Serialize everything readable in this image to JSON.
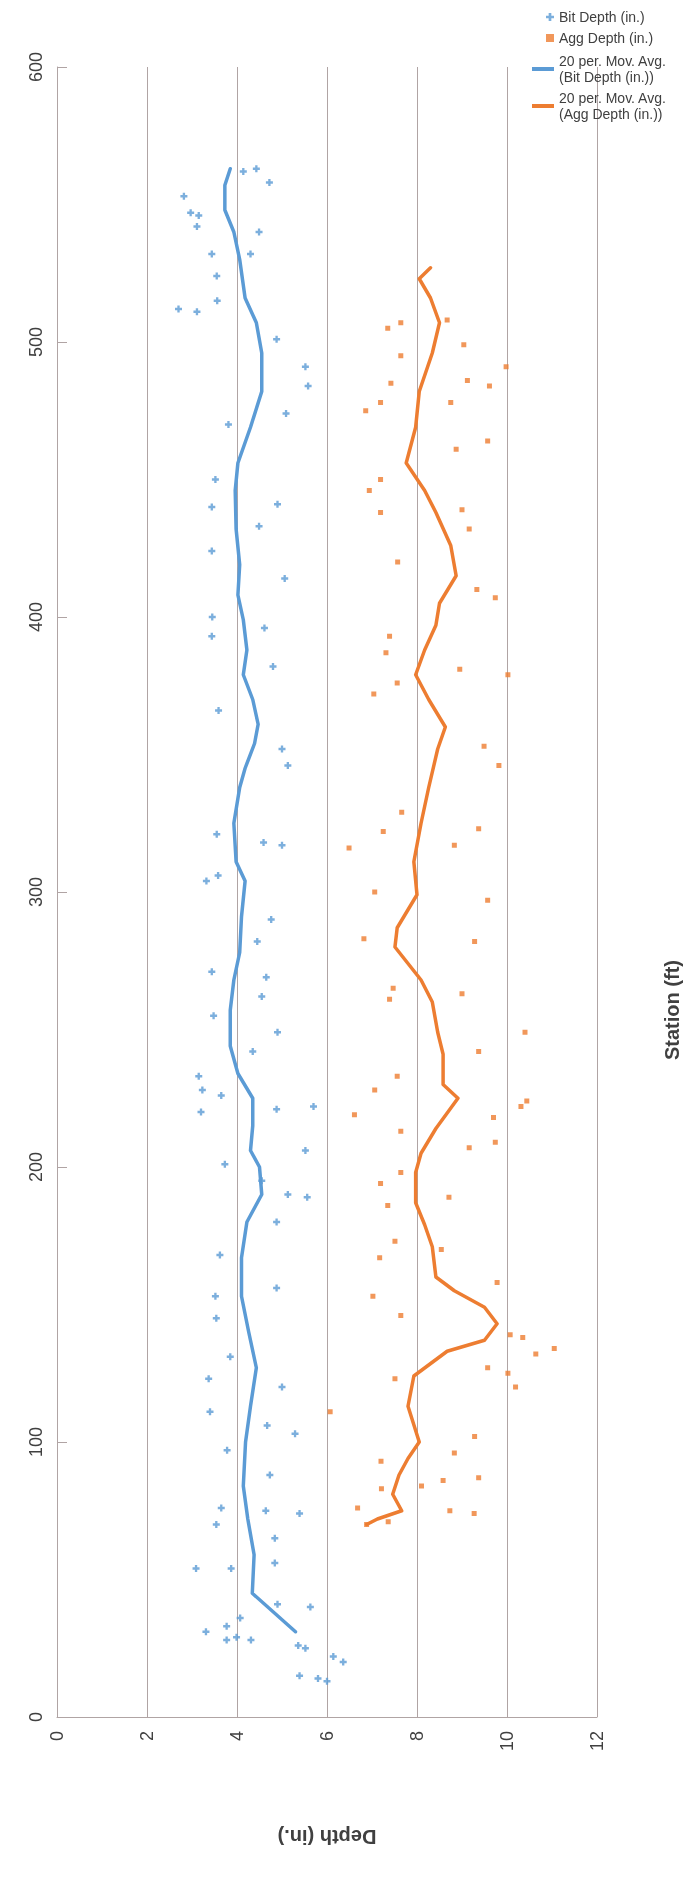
{
  "chart_data": {
    "type": "scatter",
    "xlabel": "Depth (in.)",
    "ylabel": "Station (ft)",
    "xlim": [
      0,
      12
    ],
    "xticks": [
      0,
      2,
      4,
      6,
      8,
      10,
      12
    ],
    "ylim": [
      0,
      600
    ],
    "yticks": [
      0,
      100,
      200,
      300,
      400,
      500,
      600
    ],
    "grid": "x",
    "legend": "top right",
    "series": [
      {
        "name": "Bit Depth (in.)",
        "type": "scatter",
        "marker": "cross",
        "color": "#5b9bd5",
        "values": [
          15,
          13,
          14,
          22,
          20,
          26,
          25,
          31,
          28,
          29,
          28,
          33,
          36,
          40,
          41,
          54,
          54,
          56,
          65,
          70,
          76,
          75,
          74,
          97,
          88,
          111,
          123,
          120,
          103,
          106,
          131,
          145,
          156,
          153,
          168,
          189,
          190,
          180,
          195,
          201,
          206,
          222,
          221,
          220,
          228,
          233,
          226,
          242,
          249,
          255,
          262,
          271,
          269,
          282,
          304,
          290,
          317,
          318,
          321,
          306,
          346,
          352,
          366,
          382,
          393,
          400,
          396,
          414,
          424,
          433,
          441,
          440,
          470,
          450,
          474,
          484,
          491,
          501,
          512,
          511,
          515,
          524,
          532,
          532,
          540,
          542,
          546,
          547,
          553,
          558,
          563,
          562
        ],
        "x": [
          5.39,
          6.0,
          5.8,
          6.14,
          6.36,
          5.36,
          5.52,
          3.31,
          3.77,
          3.99,
          4.31,
          3.77,
          4.07,
          5.63,
          4.9,
          3.09,
          3.87,
          4.84,
          4.84,
          3.54,
          3.65,
          4.64,
          5.39,
          3.78,
          4.73,
          3.4,
          3.37,
          5.0,
          5.29,
          4.67,
          3.85,
          3.54,
          4.88,
          3.52,
          3.62,
          5.56,
          5.13,
          4.88,
          4.55,
          3.73,
          5.52,
          5.7,
          4.88,
          3.2,
          3.23,
          3.15,
          3.65,
          4.35,
          4.9,
          3.48,
          4.55,
          3.44,
          4.65,
          4.45,
          3.32,
          4.76,
          5.0,
          4.59,
          3.55,
          3.58,
          5.13,
          5.0,
          3.59,
          4.8,
          3.44,
          3.45,
          4.61,
          5.06,
          3.44,
          4.49,
          4.9,
          3.44,
          3.81,
          3.52,
          5.09,
          5.58,
          5.52,
          4.88,
          2.7,
          3.11,
          3.56,
          3.55,
          3.44,
          4.3,
          4.49,
          3.11,
          3.15,
          2.97,
          2.82,
          4.72,
          4.43,
          4.14
        ]
      },
      {
        "name": "Agg Depth (in.)",
        "type": "scatter",
        "marker": "square",
        "color": "#ed7d31",
        "values": [
          70,
          76,
          93,
          71,
          75,
          74,
          86,
          87,
          96,
          84,
          83,
          111,
          123,
          125,
          120,
          134,
          132,
          138,
          139,
          127,
          102,
          153,
          158,
          146,
          167,
          173,
          170,
          186,
          189,
          194,
          198,
          219,
          228,
          222,
          224,
          218,
          209,
          207,
          213,
          249,
          242,
          233,
          261,
          263,
          265,
          283,
          282,
          297,
          300,
          316,
          323,
          322,
          317,
          329,
          346,
          353,
          372,
          376,
          379,
          381,
          387,
          393,
          407,
          410,
          420,
          432,
          439,
          438,
          446,
          450,
          464,
          461,
          475,
          478,
          491,
          484,
          486,
          485,
          478,
          495,
          499,
          508,
          505,
          507
        ],
        "x": [
          6.88,
          6.68,
          7.2,
          7.36,
          8.73,
          9.27,
          8.58,
          9.37,
          8.83,
          8.1,
          7.21,
          6.07,
          7.51,
          10.02,
          10.19,
          11.05,
          10.64,
          10.35,
          10.07,
          9.57,
          9.28,
          7.02,
          9.78,
          7.64,
          7.17,
          7.51,
          8.54,
          7.35,
          8.71,
          7.19,
          7.64,
          6.61,
          7.06,
          10.31,
          10.44,
          9.7,
          9.74,
          9.16,
          7.64,
          10.4,
          9.37,
          7.56,
          7.39,
          9.0,
          7.47,
          6.82,
          9.28,
          9.57,
          7.06,
          6.49,
          9.37,
          7.25,
          8.83,
          7.66,
          9.82,
          9.49,
          7.04,
          7.56,
          10.02,
          8.95,
          7.31,
          7.39,
          9.74,
          9.33,
          7.57,
          9.16,
          9.0,
          7.19,
          6.94,
          7.19,
          9.57,
          8.87,
          6.86,
          7.19,
          9.98,
          9.61,
          9.12,
          7.42,
          8.75,
          7.64,
          9.04,
          8.67,
          7.35,
          7.64
        ]
      },
      {
        "name": "20 per. Mov. Avg. (Bit Depth (in.))",
        "type": "line",
        "marker": "none",
        "line_style": "solid",
        "color": "#5b9bd5",
        "values": [
          31,
          45,
          59,
          72,
          84,
          100,
          113,
          127,
          140,
          153,
          167,
          180,
          190,
          200,
          206,
          215,
          225,
          234,
          244,
          257,
          268,
          278,
          291,
          304,
          311,
          325,
          338,
          345,
          354,
          361,
          370,
          379,
          388,
          399,
          408,
          419,
          432,
          446,
          456,
          469,
          482,
          496,
          507,
          516,
          530,
          540,
          548,
          557,
          563
        ],
        "x": [
          5.3,
          4.34,
          4.38,
          4.24,
          4.14,
          4.19,
          4.3,
          4.43,
          4.26,
          4.1,
          4.1,
          4.22,
          4.55,
          4.5,
          4.3,
          4.35,
          4.35,
          4.02,
          3.85,
          3.85,
          3.93,
          4.06,
          4.1,
          4.18,
          3.98,
          3.93,
          4.06,
          4.18,
          4.39,
          4.47,
          4.35,
          4.14,
          4.22,
          4.14,
          4.02,
          4.06,
          3.98,
          3.96,
          4.02,
          4.3,
          4.55,
          4.55,
          4.43,
          4.18,
          4.06,
          3.93,
          3.73,
          3.73,
          3.85
        ]
      },
      {
        "name": "20 per. Mov. Avg. (Agg Depth (in.))",
        "type": "line",
        "marker": "none",
        "line_style": "solid",
        "color": "#ed7d31",
        "values": [
          70,
          72,
          75,
          81,
          88,
          94,
          100,
          113,
          124,
          133,
          137,
          143,
          149,
          155,
          160,
          171,
          179,
          187,
          198,
          205,
          214,
          225,
          230,
          241,
          249,
          260,
          268,
          280,
          287,
          299,
          311,
          325,
          338,
          352,
          360,
          370,
          379,
          388,
          397,
          405,
          415,
          426,
          438,
          446,
          456,
          469,
          482,
          496,
          507,
          516,
          523,
          527
        ],
        "x": [
          6.88,
          7.12,
          7.66,
          7.46,
          7.6,
          7.8,
          8.05,
          7.8,
          7.93,
          8.67,
          9.5,
          9.78,
          9.5,
          8.83,
          8.42,
          8.34,
          8.17,
          7.97,
          7.97,
          8.09,
          8.42,
          8.91,
          8.58,
          8.58,
          8.46,
          8.34,
          8.09,
          7.51,
          7.56,
          8.0,
          7.93,
          8.09,
          8.26,
          8.46,
          8.63,
          8.26,
          7.97,
          8.17,
          8.42,
          8.5,
          8.87,
          8.75,
          8.42,
          8.17,
          7.76,
          7.97,
          8.05,
          8.34,
          8.5,
          8.3,
          8.05,
          8.3
        ]
      }
    ]
  }
}
